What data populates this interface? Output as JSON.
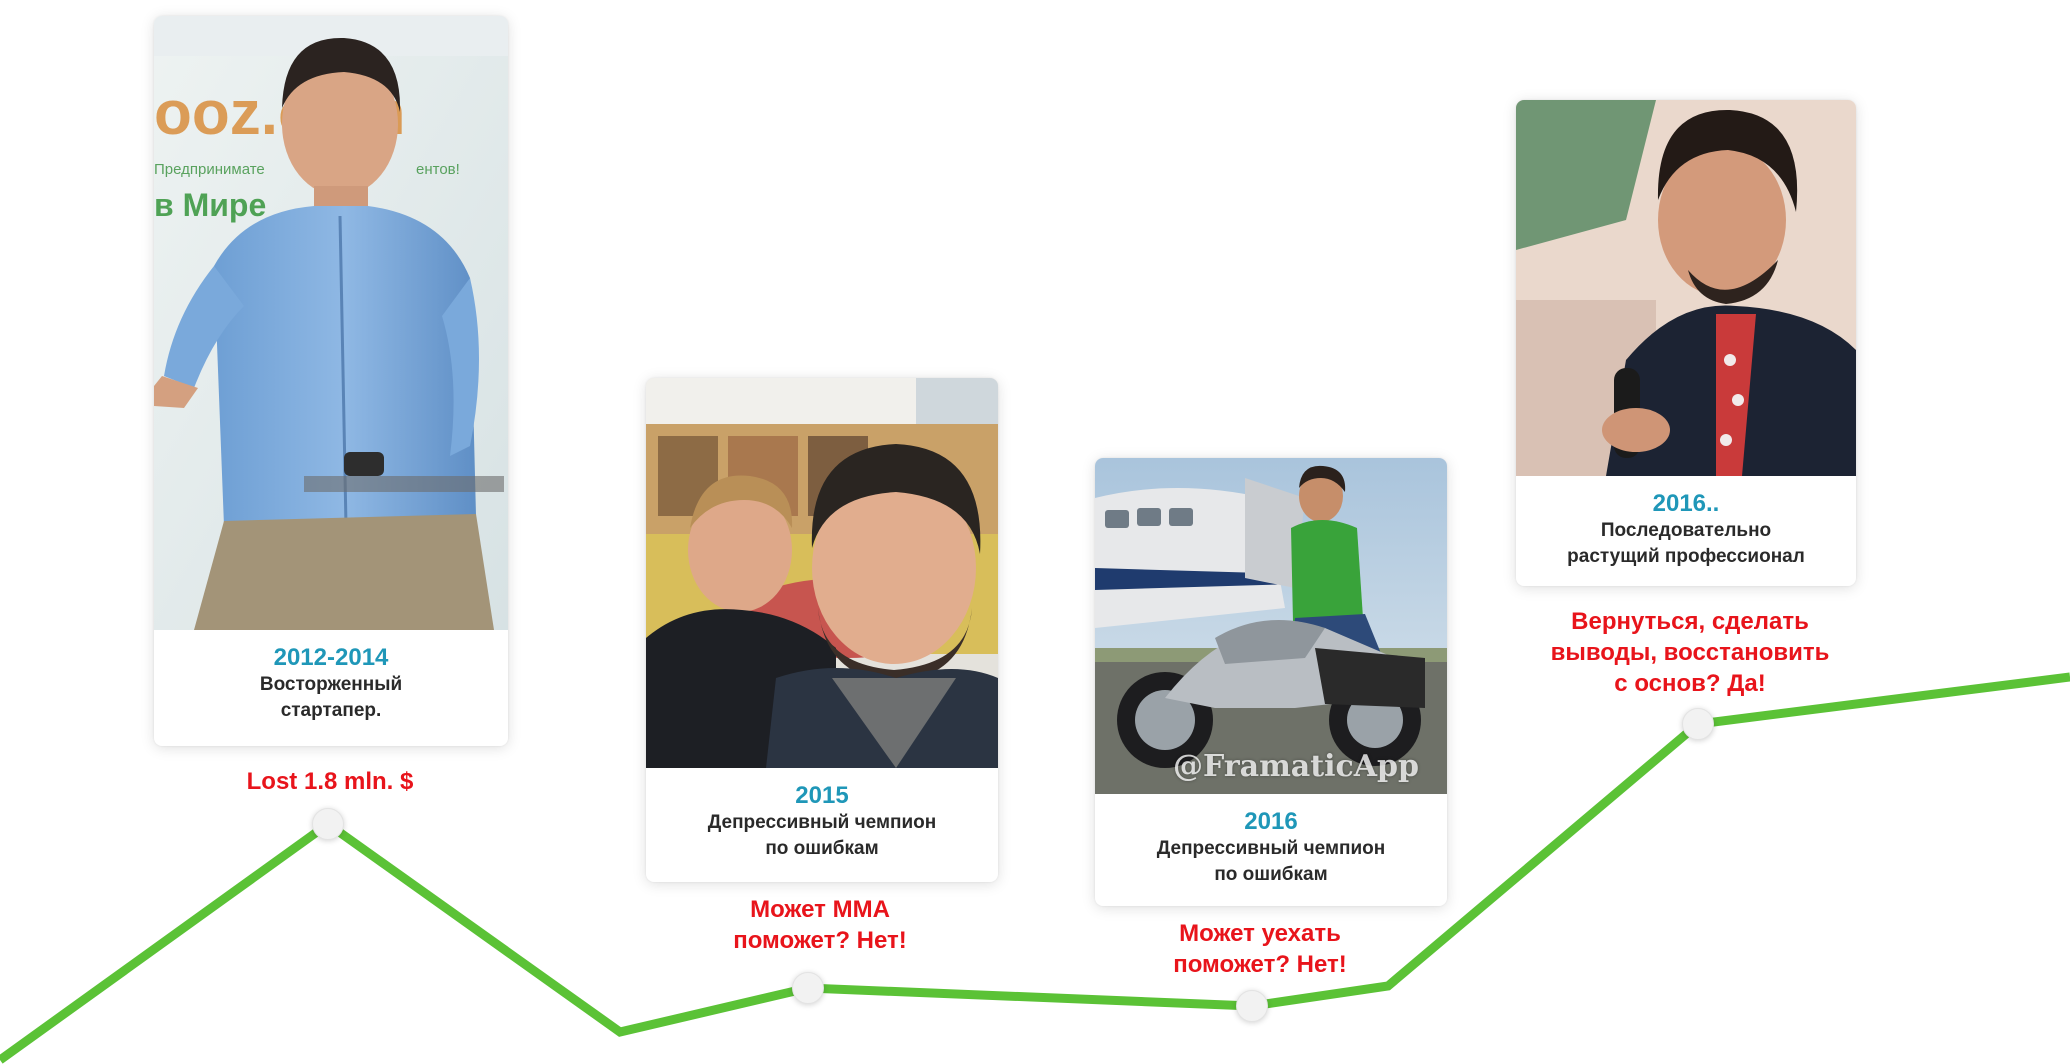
{
  "stages": [
    {
      "year": "2012-2014",
      "caption_lines": [
        "Восторженный",
        "стартапер."
      ],
      "outcome_lines": [
        "Lost 1.8 mln. $"
      ],
      "photo_lettering": [
        "ooz.com",
        "Предпринимате",
        "ентов!",
        "в Мире"
      ]
    },
    {
      "year": "2015",
      "caption_lines": [
        "Депрессивный чемпион",
        "по ошибкам"
      ],
      "outcome_lines": [
        "Может ММА",
        "поможет? Нет!"
      ]
    },
    {
      "year": "2016",
      "caption_lines": [
        "Депрессивный чемпион",
        "по ошибкам"
      ],
      "outcome_lines": [
        "Может уехать",
        "поможет? Нет!"
      ],
      "photo_watermark": "@FramaticApp"
    },
    {
      "year": "2016..",
      "caption_lines": [
        "Последовательно",
        "растущий профессионал"
      ],
      "outcome_lines": [
        "Вернуться, сделать",
        "выводы, восстановить",
        "с основ? Да!"
      ]
    }
  ],
  "colors": {
    "line": "#5bc236",
    "year": "#1f97b8",
    "outcome": "#e8141b",
    "caption": "#2a2a2a",
    "node": "#f2f2f2"
  },
  "icons": {
    "node": "circle-node-icon"
  }
}
